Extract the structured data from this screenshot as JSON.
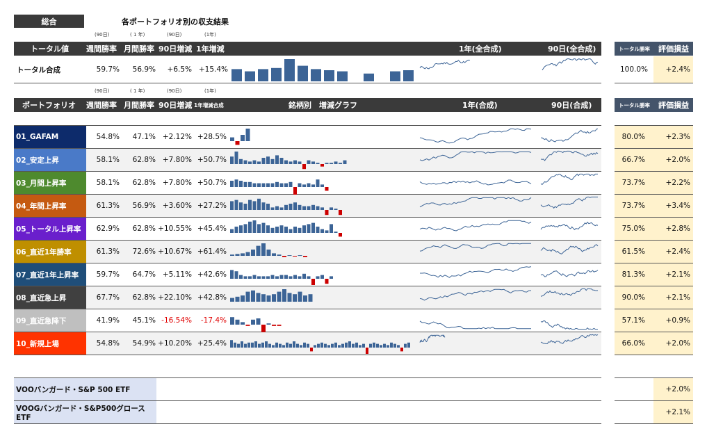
{
  "top_tab": "総合",
  "page_title": "各ポートフォリオ別の収支結果",
  "period_labels": [
    "(90日)",
    "( 1 年)",
    "(90日)",
    "(1年)"
  ],
  "total_header": {
    "name": "トータル値",
    "cols": [
      "週間勝率",
      "月間勝率",
      "90日増減",
      "1年増減"
    ],
    "year_combined": "1年(全合成)",
    "d90_combined": "90日(全合成)",
    "total_win": "トータル勝率",
    "eval": "評価損益"
  },
  "total_row": {
    "name": "トータル合成",
    "week": "59.7%",
    "month": "56.9%",
    "d90": "+6.5%",
    "y1": "+15.4%",
    "win": "100.0%",
    "eval": "+2.4%",
    "bars": [
      0.55,
      0.45,
      0.55,
      0.6,
      1.0,
      0.7,
      0.55,
      0.5,
      0.45,
      0.0,
      0.35,
      0.0,
      0.45,
      0.5
    ]
  },
  "pf_header": {
    "name": "ポートフォリオ",
    "cols": [
      "週間勝率",
      "月間勝率",
      "90日増減",
      "1年増減合成"
    ],
    "bars_title": "銘柄別　増減グラフ",
    "year": "1年(合成)",
    "d90": "90日(合成)",
    "total_win": "トータル勝率",
    "eval": "評価損益"
  },
  "colors": {
    "bar_pos": "#3c6496",
    "bar_neg": "#cc0000",
    "line": "#3c6496",
    "header": "#3a3a3a",
    "eval_bg": "#fff2cc",
    "voo_bg": "#dbe2f3"
  },
  "portfolios": [
    {
      "name": "01_GAFAM",
      "color": "#0d2b6b",
      "week": "54.8%",
      "month": "47.1%",
      "d90": "+2.12%",
      "y1": "+28.5%",
      "win": "80.0%",
      "eval": "+2.3%",
      "neg": false,
      "bars": [
        0.3,
        -0.3,
        0.5,
        1.0
      ]
    },
    {
      "name": "02_安定上昇",
      "color": "#4a7ac8",
      "week": "58.1%",
      "month": "62.8%",
      "d90": "+7.80%",
      "y1": "+50.7%",
      "win": "66.7%",
      "eval": "+2.0%",
      "neg": false,
      "bars": [
        0.6,
        1.0,
        0.4,
        0.3,
        0.2,
        0.3,
        0.2,
        0.5,
        0.6,
        0.4,
        0.7,
        0.5,
        0.3,
        0.2,
        0.3,
        0.2,
        -0.4,
        0.3,
        0.2,
        0.1,
        -0.2,
        0.1,
        0.1,
        0.2,
        0.1,
        0.3
      ]
    },
    {
      "name": "03_月間上昇率",
      "color": "#4e8a2e",
      "week": "58.1%",
      "month": "62.8%",
      "d90": "+7.80%",
      "y1": "+50.7%",
      "win": "73.7%",
      "eval": "+2.2%",
      "neg": false,
      "bars": [
        0.5,
        0.6,
        0.5,
        0.4,
        0.4,
        0.3,
        0.3,
        0.3,
        0.3,
        0.3,
        0.4,
        0.3,
        0.3,
        0.4,
        -0.8,
        0.3,
        0.2,
        0.3,
        0.2,
        0.6,
        0.2,
        -0.3
      ]
    },
    {
      "name": "04_年間上昇率",
      "color": "#c55a11",
      "week": "61.3%",
      "month": "56.9%",
      "d90": "+3.60%",
      "y1": "+27.2%",
      "win": "73.7%",
      "eval": "+3.4%",
      "neg": false,
      "bars": [
        0.7,
        0.8,
        0.6,
        0.5,
        0.8,
        0.7,
        0.9,
        0.6,
        0.5,
        0.2,
        0.3,
        0.2,
        0.4,
        0.5,
        0.6,
        0.4,
        0.3,
        0.3,
        0.4,
        0.3,
        0.2,
        -0.4,
        0.2,
        0.1,
        -0.4
      ]
    },
    {
      "name": "05_トータル上昇率",
      "color": "#6a1fcc",
      "week": "62.9%",
      "month": "62.8%",
      "d90": "+10.55%",
      "y1": "+45.4%",
      "win": "75.0%",
      "eval": "+2.8%",
      "neg": false,
      "bars": [
        0.3,
        0.5,
        0.6,
        0.7,
        0.9,
        1.0,
        0.7,
        0.8,
        0.6,
        0.4,
        0.5,
        0.6,
        0.5,
        0.3,
        0.5,
        0.4,
        0.6,
        0.7,
        0.8,
        0.5,
        0.3,
        0.2,
        0.7,
        0.1,
        -0.3
      ]
    },
    {
      "name": "06_直近1年勝率",
      "color": "#bf8f00",
      "week": "61.3%",
      "month": "72.6%",
      "d90": "+10.67%",
      "y1": "+61.4%",
      "win": "61.5%",
      "eval": "+2.4%",
      "neg": false,
      "bars": [
        0.1,
        0.15,
        0.2,
        0.3,
        0.5,
        0.8,
        1.0,
        0.5,
        0.2,
        0.1,
        -0.1,
        0.05,
        -0.05,
        0.05,
        -0.1
      ]
    },
    {
      "name": "07_直近1年上昇率",
      "color": "#1f4e79",
      "week": "59.7%",
      "month": "64.7%",
      "d90": "+5.11%",
      "y1": "+42.6%",
      "win": "81.3%",
      "eval": "+2.1%",
      "neg": false,
      "bars": [
        0.7,
        0.6,
        0.3,
        0.2,
        0.2,
        0.3,
        0.2,
        0.2,
        0.2,
        0.3,
        0.2,
        0.3,
        0.3,
        0.2,
        0.3,
        0.2,
        0.4,
        0.2,
        -0.5,
        0.2,
        0.3,
        -0.4,
        0.2
      ]
    },
    {
      "name": "08_直近急上昇",
      "color": "#404040",
      "week": "67.7%",
      "month": "62.8%",
      "d90": "+22.10%",
      "y1": "+42.8%",
      "win": "90.0%",
      "eval": "+2.1%",
      "neg": false,
      "bars": [
        0.3,
        0.4,
        0.5,
        0.8,
        0.9,
        0.7,
        0.6,
        0.5,
        0.6,
        0.8,
        1.0,
        0.7,
        0.6,
        0.8,
        0.5,
        0.6
      ]
    },
    {
      "name": "09_直近急降下",
      "color": "#bfbfbf",
      "week": "41.9%",
      "month": "45.1%",
      "d90": "-16.54%",
      "y1": "-17.4%",
      "win": "57.1%",
      "eval": "+0.9%",
      "neg": true,
      "bars": [
        0.6,
        0.4,
        0.2,
        -0.1,
        0.4,
        0.5,
        -0.6,
        0.1,
        -0.1,
        -0.1
      ]
    },
    {
      "name": "10_新規上場",
      "color": "#ff3300",
      "week": "54.8%",
      "month": "54.9%",
      "d90": "+10.20%",
      "y1": "+25.4%",
      "win": "66.0%",
      "eval": "+2.0%",
      "neg": false,
      "bars": [
        0.6,
        0.4,
        0.3,
        0.5,
        0.3,
        0.4,
        0.4,
        0.5,
        0.3,
        0.4,
        0.5,
        0.3,
        0.2,
        0.4,
        0.3,
        0.2,
        0.4,
        0.3,
        0.5,
        0.3,
        0.2,
        0.4,
        0.3,
        -0.3,
        0.2,
        0.3,
        0.4,
        0.3,
        0.2,
        0.3,
        0.4,
        0.2,
        0.3,
        0.4,
        0.5,
        0.3,
        0.4,
        0.2,
        0.3,
        -0.5,
        0.3,
        0.4,
        0.3,
        0.2,
        0.3,
        0.2,
        0.4,
        0.3,
        0.2,
        -0.3,
        0.3,
        0.4
      ]
    }
  ],
  "etfs": [
    {
      "name": "VOOバンガード・S&P 500 ETF",
      "eval": "+2.0%"
    },
    {
      "name": "VOOGバンガード・S&P500グロースETF",
      "eval": "+2.1%"
    }
  ]
}
